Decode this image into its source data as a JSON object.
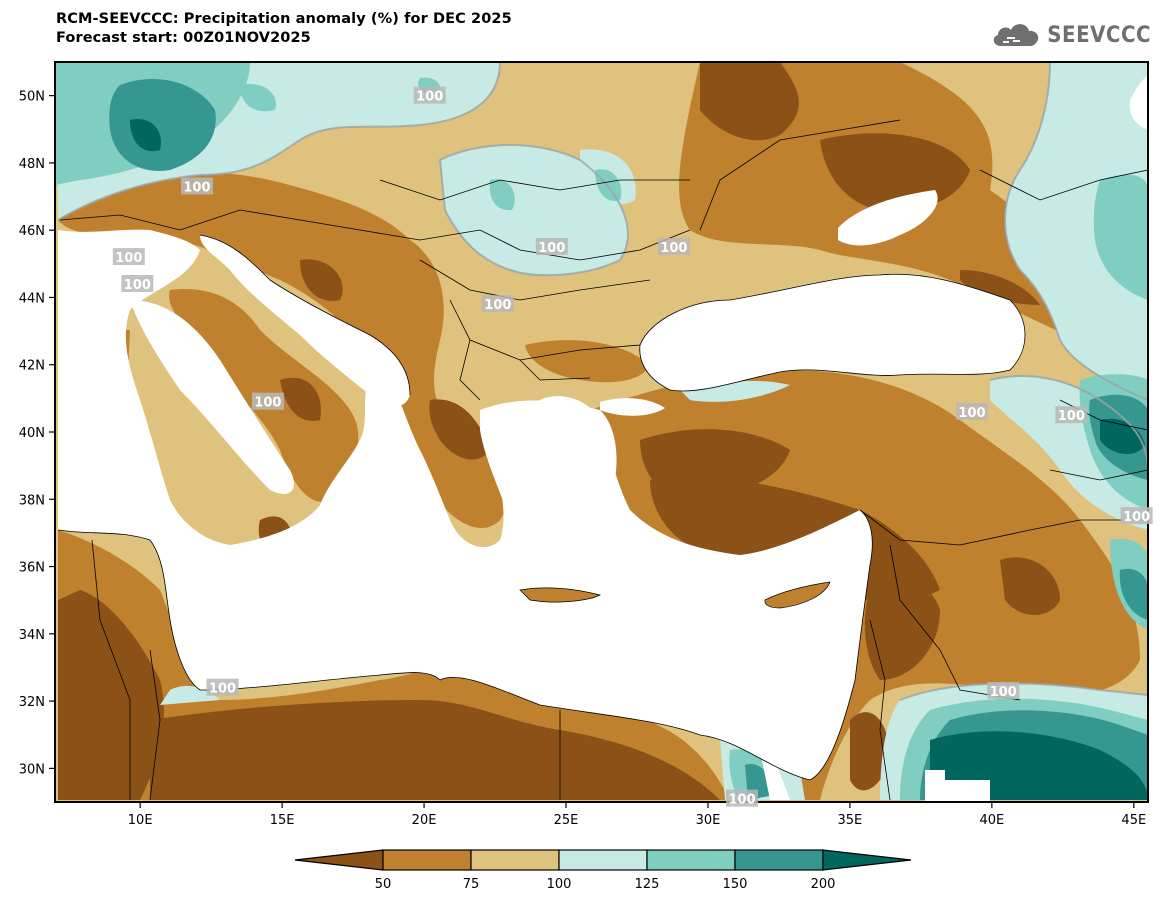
{
  "title": {
    "line1": "RCM-SEEVCCC: Precipitation anomaly (%) for DEC 2025",
    "line2": "Forecast start: 00Z01NOV2025"
  },
  "logo": {
    "text": "SEEVCCC",
    "icon": "cloud-logo-icon"
  },
  "map": {
    "lon_range": [
      7,
      45.5
    ],
    "lat_range": [
      29,
      51
    ],
    "x_ticks": [
      "10E",
      "15E",
      "20E",
      "25E",
      "30E",
      "35E",
      "40E",
      "45E"
    ],
    "x_tick_values": [
      10,
      15,
      20,
      25,
      30,
      35,
      40,
      45
    ],
    "y_ticks": [
      "30N",
      "32N",
      "34N",
      "36N",
      "38N",
      "40N",
      "42N",
      "44N",
      "46N",
      "48N",
      "50N"
    ],
    "y_tick_values": [
      30,
      32,
      34,
      36,
      38,
      40,
      42,
      44,
      46,
      48,
      50
    ],
    "contour_labels": [
      {
        "text": "100",
        "lon": 20.2,
        "lat": 50.0
      },
      {
        "text": "100",
        "lon": 12.0,
        "lat": 47.3
      },
      {
        "text": "100",
        "lon": 9.6,
        "lat": 45.2
      },
      {
        "text": "100",
        "lon": 9.9,
        "lat": 44.4
      },
      {
        "text": "100",
        "lon": 24.5,
        "lat": 45.5
      },
      {
        "text": "100",
        "lon": 28.8,
        "lat": 45.5
      },
      {
        "text": "100",
        "lon": 22.6,
        "lat": 43.8
      },
      {
        "text": "100",
        "lon": 14.5,
        "lat": 40.9
      },
      {
        "text": "100",
        "lon": 39.3,
        "lat": 40.6
      },
      {
        "text": "100",
        "lon": 42.8,
        "lat": 40.5
      },
      {
        "text": "100",
        "lon": 45.1,
        "lat": 37.5
      },
      {
        "text": "100",
        "lon": 12.9,
        "lat": 32.4
      },
      {
        "text": "100",
        "lon": 40.4,
        "lat": 32.3
      },
      {
        "text": "100",
        "lon": 31.2,
        "lat": 29.1
      }
    ]
  },
  "colorbar": {
    "labels": [
      "50",
      "75",
      "100",
      "125",
      "150",
      "200"
    ],
    "colors": [
      "#8c5116",
      "#bf812d",
      "#dfc27d",
      "#c7eae5",
      "#80cdc1",
      "#35978f",
      "#01665e"
    ]
  }
}
